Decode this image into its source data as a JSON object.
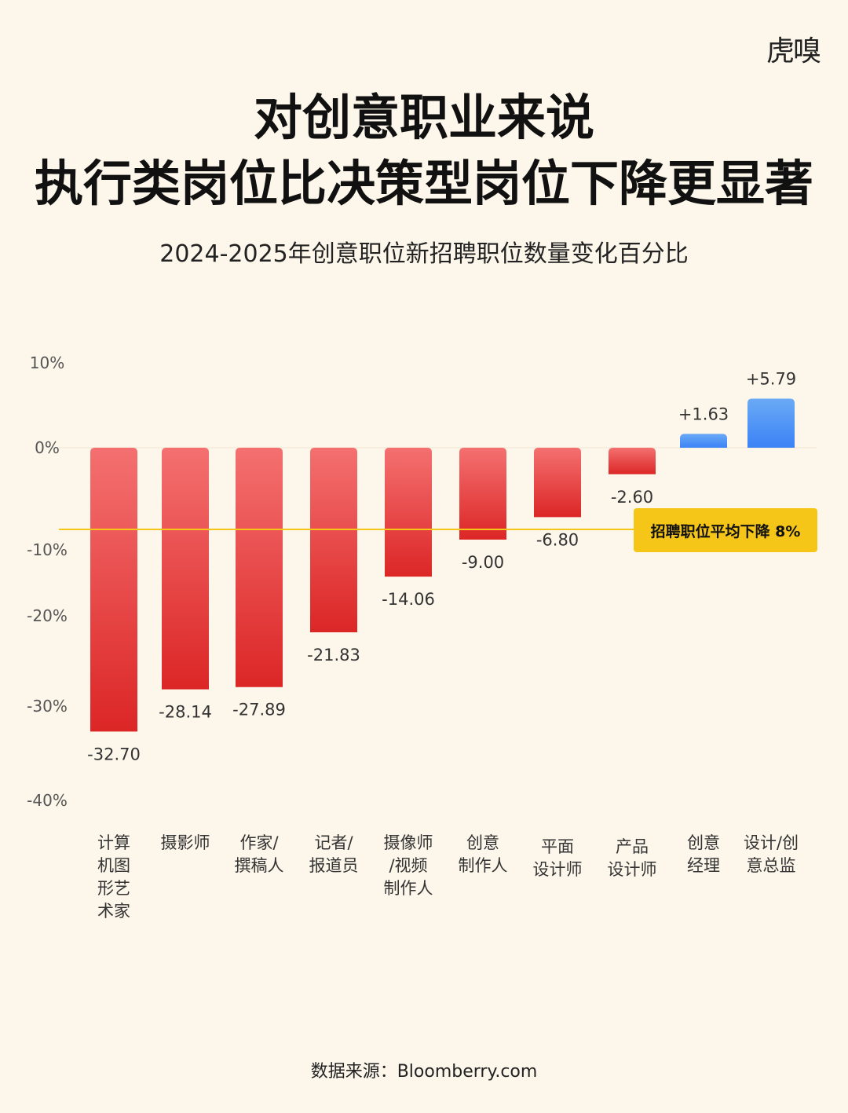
{
  "logo": "虎嗅",
  "title_line1": "对创意职业来说",
  "title_line2": "执行类岗位比决策型岗位下降更显著",
  "subtitle": "2024-2025年创意职位新招聘职位数量变化百分比",
  "source": "数据来源：Bloomberry.com",
  "chart_data": {
    "type": "bar",
    "categories": [
      [
        "计算",
        "机图",
        "形艺",
        "术家"
      ],
      [
        "摄影师"
      ],
      [
        "作家/",
        "撰稿人"
      ],
      [
        "记者/",
        "报道员"
      ],
      [
        "摄像师",
        "/视频",
        "制作人"
      ],
      [
        "创意",
        "制作人"
      ],
      [
        "平面",
        "设计师"
      ],
      [
        "产品",
        "设计师"
      ],
      [
        "创意",
        "经理"
      ],
      [
        "设计/创",
        "意总监"
      ]
    ],
    "values": [
      -32.7,
      -28.14,
      -27.89,
      -21.83,
      -14.06,
      -9.0,
      -6.8,
      -2.6,
      1.63,
      5.79
    ],
    "value_labels": [
      "-32.70",
      "-28.14",
      "-27.89",
      "-21.83",
      "-14.06",
      "-9.00",
      "-6.80",
      "-2.60",
      "+1.63",
      "+5.79"
    ],
    "ytick_labels": [
      "10%",
      "0%",
      "-10%",
      "-20%",
      "-30%",
      "-40%"
    ],
    "ytick_values": [
      10,
      0,
      -10,
      -20,
      -30,
      -40
    ],
    "ylim": [
      -40,
      10
    ],
    "reference_line": {
      "value": -8,
      "label": "招聘职位平均下降 8%",
      "color": "#f5c518"
    },
    "colors": {
      "negative_top": "#f47070",
      "negative_bottom": "#dc2626",
      "positive_top": "#6aaaf5",
      "positive_bottom": "#3b82f6"
    }
  }
}
